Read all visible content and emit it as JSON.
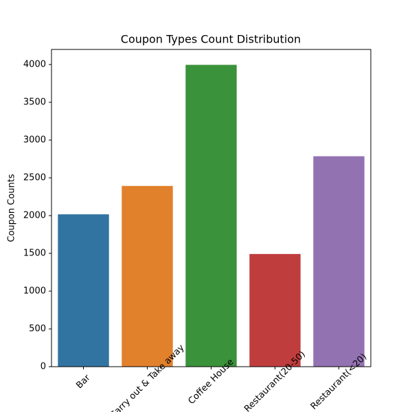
{
  "chart_data": {
    "type": "bar",
    "title": "Coupon Types Count Distribution",
    "y_label": "Coupon Counts",
    "categories": [
      "Bar",
      "Carry out & Take away",
      "Coffee House",
      "Restaurant(20-50)",
      "Restaurant(<20)"
    ],
    "values": [
      2017,
      2393,
      3996,
      1492,
      2786
    ],
    "colors": [
      "#3274a1",
      "#e1812c",
      "#3a923a",
      "#c03d3e",
      "#9372b2"
    ],
    "ylim": [
      0,
      4200
    ],
    "yticks": [
      0,
      500,
      1000,
      1500,
      2000,
      2500,
      3000,
      3500,
      4000
    ],
    "grid": false
  }
}
